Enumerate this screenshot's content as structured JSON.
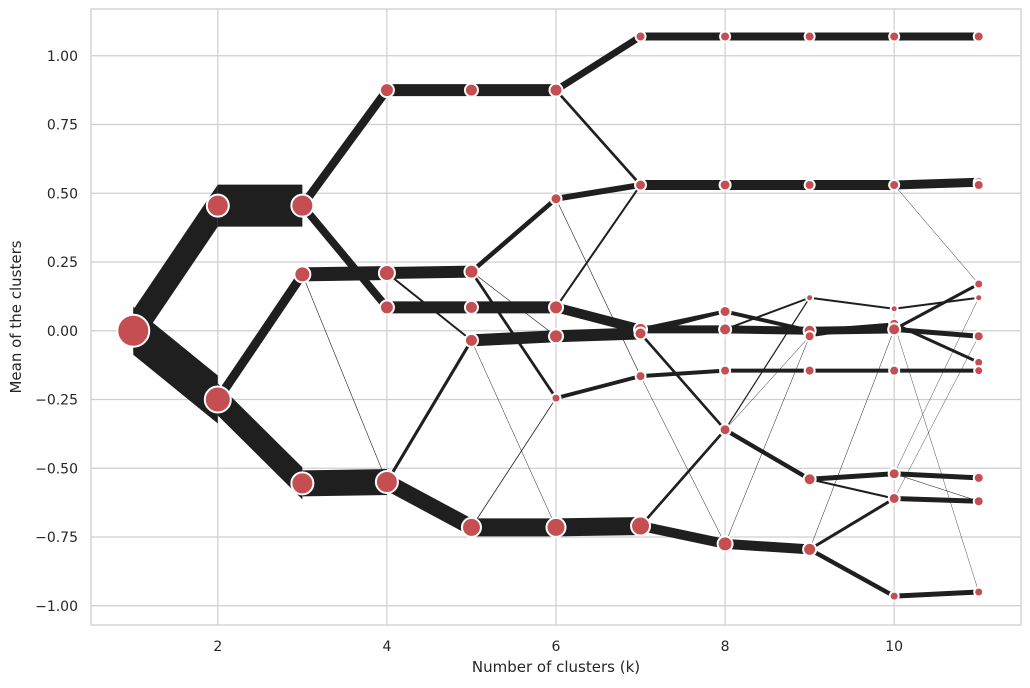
{
  "chart_data": {
    "type": "line",
    "title": "",
    "xlabel": "Number of clusters (k)",
    "ylabel": "Mean of the clusters",
    "xlim": [
      0.5,
      11.5
    ],
    "ylim": [
      -1.07,
      1.17
    ],
    "x_ticks": [
      2,
      4,
      6,
      8,
      10
    ],
    "y_ticks": [
      -1.0,
      -0.75,
      -0.5,
      -0.25,
      0.0,
      0.25,
      0.5,
      0.75,
      1.0
    ],
    "x_tick_labels": [
      "2",
      "4",
      "6",
      "8",
      "10"
    ],
    "y_tick_labels": [
      "−1.00",
      "−0.75",
      "−0.50",
      "−0.25",
      "0.00",
      "0.25",
      "0.50",
      "0.75",
      "1.00"
    ],
    "grid": true,
    "legend": "none",
    "colors": {
      "edge": "#1f1f1f",
      "node": "#c44e52",
      "node_border": "#ffffff",
      "grid": "#cfcfcf",
      "spine": "#cccccc"
    },
    "nodes": [
      {
        "k": 1,
        "mean": 0.0,
        "size": 32
      },
      {
        "k": 2,
        "mean": 0.455,
        "size": 22
      },
      {
        "k": 2,
        "mean": -0.25,
        "size": 26
      },
      {
        "k": 3,
        "mean": 0.455,
        "size": 22
      },
      {
        "k": 3,
        "mean": 0.205,
        "size": 16
      },
      {
        "k": 3,
        "mean": -0.555,
        "size": 22
      },
      {
        "k": 4,
        "mean": 0.875,
        "size": 14
      },
      {
        "k": 4,
        "mean": 0.21,
        "size": 16
      },
      {
        "k": 4,
        "mean": 0.085,
        "size": 14
      },
      {
        "k": 4,
        "mean": -0.55,
        "size": 22
      },
      {
        "k": 5,
        "mean": 0.875,
        "size": 13
      },
      {
        "k": 5,
        "mean": 0.215,
        "size": 14
      },
      {
        "k": 5,
        "mean": 0.085,
        "size": 13
      },
      {
        "k": 5,
        "mean": -0.035,
        "size": 13
      },
      {
        "k": 5,
        "mean": -0.715,
        "size": 19
      },
      {
        "k": 6,
        "mean": 0.875,
        "size": 13
      },
      {
        "k": 6,
        "mean": 0.48,
        "size": 11
      },
      {
        "k": 6,
        "mean": 0.085,
        "size": 14
      },
      {
        "k": 6,
        "mean": -0.02,
        "size": 14
      },
      {
        "k": 6,
        "mean": -0.245,
        "size": 9
      },
      {
        "k": 6,
        "mean": -0.715,
        "size": 19
      },
      {
        "k": 7,
        "mean": 1.07,
        "size": 10
      },
      {
        "k": 7,
        "mean": 0.53,
        "size": 11
      },
      {
        "k": 7,
        "mean": 0.005,
        "size": 13
      },
      {
        "k": 7,
        "mean": -0.01,
        "size": 12
      },
      {
        "k": 7,
        "mean": -0.165,
        "size": 10
      },
      {
        "k": 7,
        "mean": -0.71,
        "size": 19
      },
      {
        "k": 8,
        "mean": 1.07,
        "size": 10
      },
      {
        "k": 8,
        "mean": 0.53,
        "size": 11
      },
      {
        "k": 8,
        "mean": 0.07,
        "size": 11
      },
      {
        "k": 8,
        "mean": 0.005,
        "size": 12
      },
      {
        "k": 8,
        "mean": -0.145,
        "size": 10
      },
      {
        "k": 8,
        "mean": -0.36,
        "size": 11
      },
      {
        "k": 8,
        "mean": -0.775,
        "size": 15
      },
      {
        "k": 9,
        "mean": 1.07,
        "size": 10
      },
      {
        "k": 9,
        "mean": 0.53,
        "size": 10
      },
      {
        "k": 9,
        "mean": 0.12,
        "size": 7
      },
      {
        "k": 9,
        "mean": 0.0,
        "size": 12
      },
      {
        "k": 9,
        "mean": -0.02,
        "size": 10
      },
      {
        "k": 9,
        "mean": -0.145,
        "size": 10
      },
      {
        "k": 9,
        "mean": -0.54,
        "size": 12
      },
      {
        "k": 9,
        "mean": -0.795,
        "size": 13
      },
      {
        "k": 10,
        "mean": 1.07,
        "size": 10
      },
      {
        "k": 10,
        "mean": 0.53,
        "size": 10
      },
      {
        "k": 10,
        "mean": 0.08,
        "size": 7
      },
      {
        "k": 10,
        "mean": 0.025,
        "size": 10
      },
      {
        "k": 10,
        "mean": 0.005,
        "size": 12
      },
      {
        "k": 10,
        "mean": -0.145,
        "size": 10
      },
      {
        "k": 10,
        "mean": -0.52,
        "size": 11
      },
      {
        "k": 10,
        "mean": -0.61,
        "size": 11
      },
      {
        "k": 10,
        "mean": -0.965,
        "size": 9
      },
      {
        "k": 11,
        "mean": 1.07,
        "size": 10
      },
      {
        "k": 11,
        "mean": 0.54,
        "size": 10
      },
      {
        "k": 11,
        "mean": 0.53,
        "size": 10
      },
      {
        "k": 11,
        "mean": 0.17,
        "size": 9
      },
      {
        "k": 11,
        "mean": 0.12,
        "size": 7
      },
      {
        "k": 11,
        "mean": -0.02,
        "size": 10
      },
      {
        "k": 11,
        "mean": -0.115,
        "size": 9
      },
      {
        "k": 11,
        "mean": -0.145,
        "size": 9
      },
      {
        "k": 11,
        "mean": -0.535,
        "size": 10
      },
      {
        "k": 11,
        "mean": -0.62,
        "size": 10
      },
      {
        "k": 11,
        "mean": -0.95,
        "size": 9
      }
    ],
    "edges": [
      {
        "from": [
          1,
          0.0
        ],
        "to": [
          2,
          0.455
        ],
        "weight": 42
      },
      {
        "from": [
          1,
          0.0
        ],
        "to": [
          2,
          -0.25
        ],
        "weight": 48
      },
      {
        "from": [
          2,
          0.455
        ],
        "to": [
          3,
          0.455
        ],
        "weight": 42
      },
      {
        "from": [
          2,
          -0.25
        ],
        "to": [
          3,
          0.205
        ],
        "weight": 16
      },
      {
        "from": [
          2,
          -0.25
        ],
        "to": [
          3,
          -0.555
        ],
        "weight": 32
      },
      {
        "from": [
          3,
          0.455
        ],
        "to": [
          4,
          0.875
        ],
        "weight": 14
      },
      {
        "from": [
          3,
          0.455
        ],
        "to": [
          4,
          0.085
        ],
        "weight": 12
      },
      {
        "from": [
          3,
          0.205
        ],
        "to": [
          4,
          0.21
        ],
        "weight": 14
      },
      {
        "from": [
          3,
          0.205
        ],
        "to": [
          4,
          -0.55
        ],
        "weight": 0.6
      },
      {
        "from": [
          3,
          -0.555
        ],
        "to": [
          4,
          -0.55
        ],
        "weight": 26
      },
      {
        "from": [
          4,
          0.875
        ],
        "to": [
          5,
          0.875
        ],
        "weight": 12
      },
      {
        "from": [
          4,
          0.21
        ],
        "to": [
          5,
          0.215
        ],
        "weight": 12
      },
      {
        "from": [
          4,
          0.21
        ],
        "to": [
          5,
          -0.035
        ],
        "weight": 2
      },
      {
        "from": [
          4,
          0.085
        ],
        "to": [
          5,
          0.085
        ],
        "weight": 12
      },
      {
        "from": [
          4,
          -0.55
        ],
        "to": [
          5,
          -0.035
        ],
        "weight": 6
      },
      {
        "from": [
          4,
          -0.55
        ],
        "to": [
          5,
          -0.715
        ],
        "weight": 18
      },
      {
        "from": [
          5,
          0.875
        ],
        "to": [
          6,
          0.875
        ],
        "weight": 12
      },
      {
        "from": [
          5,
          0.215
        ],
        "to": [
          6,
          0.48
        ],
        "weight": 6
      },
      {
        "from": [
          5,
          0.215
        ],
        "to": [
          6,
          -0.245
        ],
        "weight": 5
      },
      {
        "from": [
          5,
          0.215
        ],
        "to": [
          6,
          -0.02
        ],
        "weight": 0.6
      },
      {
        "from": [
          5,
          0.085
        ],
        "to": [
          6,
          0.085
        ],
        "weight": 12
      },
      {
        "from": [
          5,
          -0.035
        ],
        "to": [
          6,
          -0.02
        ],
        "weight": 12
      },
      {
        "from": [
          5,
          -0.035
        ],
        "to": [
          6,
          -0.715
        ],
        "weight": 0.5
      },
      {
        "from": [
          5,
          -0.715
        ],
        "to": [
          6,
          -0.715
        ],
        "weight": 18
      },
      {
        "from": [
          5,
          -0.715
        ],
        "to": [
          6,
          -0.245
        ],
        "weight": 0.8
      },
      {
        "from": [
          6,
          0.875
        ],
        "to": [
          7,
          1.07
        ],
        "weight": 8
      },
      {
        "from": [
          6,
          0.875
        ],
        "to": [
          7,
          0.53
        ],
        "weight": 4
      },
      {
        "from": [
          6,
          0.48
        ],
        "to": [
          7,
          0.53
        ],
        "weight": 6
      },
      {
        "from": [
          6,
          0.48
        ],
        "to": [
          7,
          -0.165
        ],
        "weight": 0.6
      },
      {
        "from": [
          6,
          0.085
        ],
        "to": [
          7,
          0.53
        ],
        "weight": 2
      },
      {
        "from": [
          6,
          0.085
        ],
        "to": [
          7,
          0.005
        ],
        "weight": 10
      },
      {
        "from": [
          6,
          -0.02
        ],
        "to": [
          7,
          -0.01
        ],
        "weight": 12
      },
      {
        "from": [
          6,
          -0.245
        ],
        "to": [
          7,
          -0.165
        ],
        "weight": 4
      },
      {
        "from": [
          6,
          -0.715
        ],
        "to": [
          7,
          -0.71
        ],
        "weight": 18
      },
      {
        "from": [
          7,
          1.07
        ],
        "to": [
          8,
          1.07
        ],
        "weight": 8
      },
      {
        "from": [
          7,
          0.53
        ],
        "to": [
          8,
          0.53
        ],
        "weight": 10
      },
      {
        "from": [
          7,
          0.005
        ],
        "to": [
          8,
          0.07
        ],
        "weight": 4
      },
      {
        "from": [
          7,
          0.005
        ],
        "to": [
          8,
          0.005
        ],
        "weight": 8
      },
      {
        "from": [
          7,
          -0.01
        ],
        "to": [
          8,
          0.07
        ],
        "weight": 3
      },
      {
        "from": [
          7,
          -0.01
        ],
        "to": [
          8,
          -0.36
        ],
        "weight": 4
      },
      {
        "from": [
          7,
          -0.165
        ],
        "to": [
          8,
          -0.145
        ],
        "weight": 4
      },
      {
        "from": [
          7,
          -0.165
        ],
        "to": [
          8,
          -0.775
        ],
        "weight": 0.5
      },
      {
        "from": [
          7,
          -0.71
        ],
        "to": [
          8,
          -0.775
        ],
        "weight": 10
      },
      {
        "from": [
          7,
          -0.71
        ],
        "to": [
          8,
          -0.36
        ],
        "weight": 4
      },
      {
        "from": [
          8,
          1.07
        ],
        "to": [
          9,
          1.07
        ],
        "weight": 8
      },
      {
        "from": [
          8,
          0.53
        ],
        "to": [
          9,
          0.53
        ],
        "weight": 10
      },
      {
        "from": [
          8,
          0.07
        ],
        "to": [
          9,
          0.0
        ],
        "weight": 4
      },
      {
        "from": [
          8,
          0.005
        ],
        "to": [
          9,
          0.0
        ],
        "weight": 8
      },
      {
        "from": [
          8,
          0.005
        ],
        "to": [
          9,
          0.12
        ],
        "weight": 2
      },
      {
        "from": [
          8,
          -0.145
        ],
        "to": [
          9,
          -0.145
        ],
        "weight": 4
      },
      {
        "from": [
          8,
          -0.36
        ],
        "to": [
          9,
          0.12
        ],
        "weight": 1.2
      },
      {
        "from": [
          8,
          -0.36
        ],
        "to": [
          9,
          -0.54
        ],
        "weight": 5
      },
      {
        "from": [
          8,
          -0.36
        ],
        "to": [
          9,
          -0.02
        ],
        "weight": 0.5
      },
      {
        "from": [
          8,
          -0.775
        ],
        "to": [
          9,
          -0.795
        ],
        "weight": 10
      },
      {
        "from": [
          8,
          -0.775
        ],
        "to": [
          9,
          -0.02
        ],
        "weight": 0.5
      },
      {
        "from": [
          9,
          1.07
        ],
        "to": [
          10,
          1.07
        ],
        "weight": 8
      },
      {
        "from": [
          9,
          0.53
        ],
        "to": [
          10,
          0.53
        ],
        "weight": 10
      },
      {
        "from": [
          9,
          0.12
        ],
        "to": [
          10,
          0.08
        ],
        "weight": 2
      },
      {
        "from": [
          9,
          0.0
        ],
        "to": [
          10,
          0.005
        ],
        "weight": 8
      },
      {
        "from": [
          9,
          0.0
        ],
        "to": [
          10,
          0.025
        ],
        "weight": 3
      },
      {
        "from": [
          9,
          -0.02
        ],
        "to": [
          10,
          0.025
        ],
        "weight": 2
      },
      {
        "from": [
          9,
          -0.145
        ],
        "to": [
          10,
          -0.145
        ],
        "weight": 4
      },
      {
        "from": [
          9,
          -0.54
        ],
        "to": [
          10,
          -0.52
        ],
        "weight": 5
      },
      {
        "from": [
          9,
          -0.54
        ],
        "to": [
          10,
          -0.61
        ],
        "weight": 2
      },
      {
        "from": [
          9,
          -0.795
        ],
        "to": [
          10,
          -0.965
        ],
        "weight": 5
      },
      {
        "from": [
          9,
          -0.795
        ],
        "to": [
          10,
          -0.61
        ],
        "weight": 3
      },
      {
        "from": [
          9,
          -0.795
        ],
        "to": [
          10,
          0.005
        ],
        "weight": 0.5
      },
      {
        "from": [
          10,
          1.07
        ],
        "to": [
          11,
          1.07
        ],
        "weight": 8
      },
      {
        "from": [
          10,
          0.53
        ],
        "to": [
          11,
          0.54
        ],
        "weight": 9
      },
      {
        "from": [
          10,
          0.53
        ],
        "to": [
          11,
          0.17
        ],
        "weight": 0.5
      },
      {
        "from": [
          10,
          0.08
        ],
        "to": [
          11,
          0.12
        ],
        "weight": 2
      },
      {
        "from": [
          10,
          0.025
        ],
        "to": [
          11,
          -0.115
        ],
        "weight": 3
      },
      {
        "from": [
          10,
          0.005
        ],
        "to": [
          11,
          -0.02
        ],
        "weight": 5
      },
      {
        "from": [
          10,
          0.005
        ],
        "to": [
          11,
          0.17
        ],
        "weight": 3
      },
      {
        "from": [
          10,
          -0.145
        ],
        "to": [
          11,
          -0.145
        ],
        "weight": 4
      },
      {
        "from": [
          10,
          -0.52
        ],
        "to": [
          11,
          -0.535
        ],
        "weight": 5
      },
      {
        "from": [
          10,
          -0.52
        ],
        "to": [
          11,
          0.12
        ],
        "weight": 0.4
      },
      {
        "from": [
          10,
          -0.52
        ],
        "to": [
          11,
          -0.62
        ],
        "weight": 0.6
      },
      {
        "from": [
          10,
          -0.61
        ],
        "to": [
          11,
          -0.62
        ],
        "weight": 5
      },
      {
        "from": [
          10,
          -0.61
        ],
        "to": [
          11,
          -0.02
        ],
        "weight": 0.4
      },
      {
        "from": [
          10,
          -0.965
        ],
        "to": [
          11,
          -0.95
        ],
        "weight": 5
      },
      {
        "from": [
          10,
          0.025
        ],
        "to": [
          11,
          -0.95
        ],
        "weight": 0.4
      }
    ]
  }
}
